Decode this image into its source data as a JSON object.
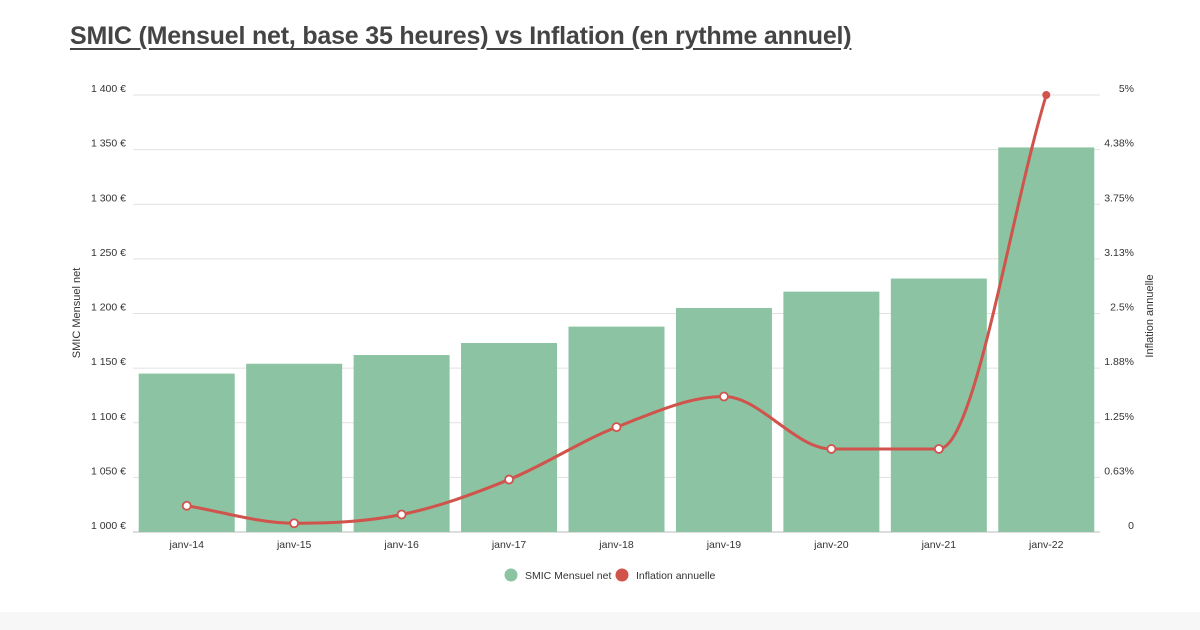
{
  "title": "SMIC (Mensuel net, base 35 heures) vs Inflation (en rythme annuel)",
  "chart_data": {
    "type": "bar+line",
    "categories": [
      "janv-14",
      "janv-15",
      "janv-16",
      "janv-17",
      "janv-18",
      "janv-19",
      "janv-20",
      "janv-21",
      "janv-22"
    ],
    "series": [
      {
        "name": "SMIC Mensuel net",
        "type": "bar",
        "axis": "left",
        "color": "#8bc3a3",
        "values": [
          1145,
          1154,
          1162,
          1173,
          1188,
          1205,
          1220,
          1232,
          1352
        ]
      },
      {
        "name": "Inflation annuelle",
        "type": "line",
        "axis": "right",
        "color": "#d0534c",
        "values": [
          0.3,
          0.1,
          0.2,
          0.6,
          1.2,
          1.55,
          0.95,
          0.95,
          5.0
        ]
      }
    ],
    "y_left": {
      "label": "SMIC Mensuel net",
      "range": [
        1000,
        1400
      ],
      "ticks": [
        1000,
        1050,
        1100,
        1150,
        1200,
        1250,
        1300,
        1350,
        1400
      ],
      "tick_labels": [
        "1 000 €",
        "1 050 €",
        "1 100 €",
        "1 150 €",
        "1 200 €",
        "1 250 €",
        "1 300 €",
        "1 350 €",
        "1 400 €"
      ]
    },
    "y_right": {
      "label": "Inflation annuelle",
      "range": [
        0,
        5
      ],
      "ticks": [
        0,
        0.625,
        1.25,
        1.875,
        2.5,
        3.125,
        3.75,
        4.375,
        5
      ],
      "tick_labels": [
        "0",
        "0.63%",
        "1.25%",
        "1.88%",
        "2.5%",
        "3.13%",
        "3.75%",
        "4.38%",
        "5%"
      ]
    },
    "grid": true,
    "legend_position": "bottom-center"
  }
}
